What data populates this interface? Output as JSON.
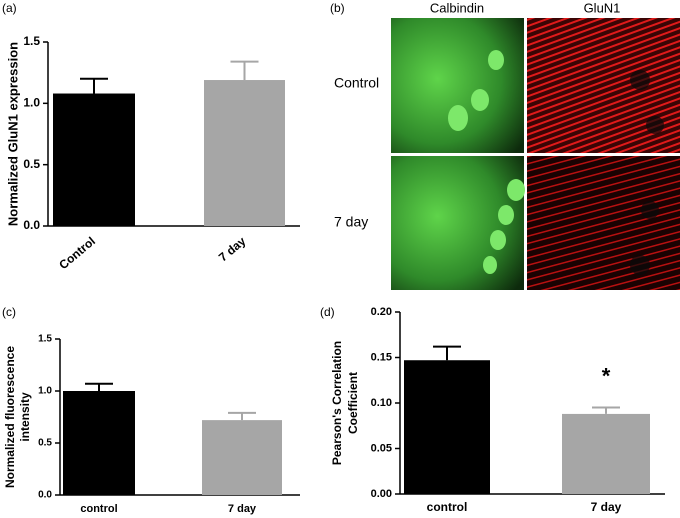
{
  "chart_data": [
    {
      "type": "bar",
      "panel": "(a)",
      "ylabel": [
        "Normalized  GluN1 expression"
      ],
      "categories": [
        "Control",
        "7 day"
      ],
      "values": [
        1.08,
        1.19
      ],
      "errors": [
        0.12,
        0.15
      ],
      "colors": [
        "#000000",
        "#a6a6a6"
      ],
      "ylim": [
        0,
        1.5
      ],
      "yticks": [
        {
          "value": 0,
          "label": "0.0"
        },
        0.5,
        {
          "value": 1,
          "label": "1.0"
        },
        1.5
      ]
    },
    {
      "type": "bar",
      "panel": "(c)",
      "ylabel": [
        "Normalized fluorescence",
        "intensity"
      ],
      "categories": [
        "control",
        "7 day"
      ],
      "values": [
        1.0,
        0.72
      ],
      "errors": [
        0.07,
        0.07
      ],
      "colors": [
        "#000000",
        "#a6a6a6"
      ],
      "ylim": [
        0,
        1.5
      ],
      "yticks": [
        {
          "value": 0,
          "label": "0.0"
        },
        0.5,
        {
          "value": 1,
          "label": "1.0"
        },
        1.5
      ]
    },
    {
      "type": "bar",
      "panel": "(d)",
      "ylabel": [
        "Pearson's Correlation",
        "Coefficient"
      ],
      "categories": [
        "control",
        "7 day"
      ],
      "values": [
        0.147,
        0.088
      ],
      "errors": [
        0.015,
        0.007
      ],
      "colors": [
        "#000000",
        "#a6a6a6"
      ],
      "ylim": [
        0,
        0.2
      ],
      "annotation": "*",
      "yticks": [
        {
          "value": 0,
          "label": "0.00"
        },
        {
          "value": 0.05,
          "label": "0.05"
        },
        {
          "value": 0.1,
          "label": "0.10"
        },
        {
          "value": 0.15,
          "label": "0.15"
        },
        {
          "value": 0.2,
          "label": "0.20"
        }
      ]
    }
  ],
  "panel_b": {
    "panel": "(b)",
    "columns": [
      "Calbindin",
      "GluN1"
    ],
    "rows": [
      "Control",
      "7 day"
    ]
  }
}
